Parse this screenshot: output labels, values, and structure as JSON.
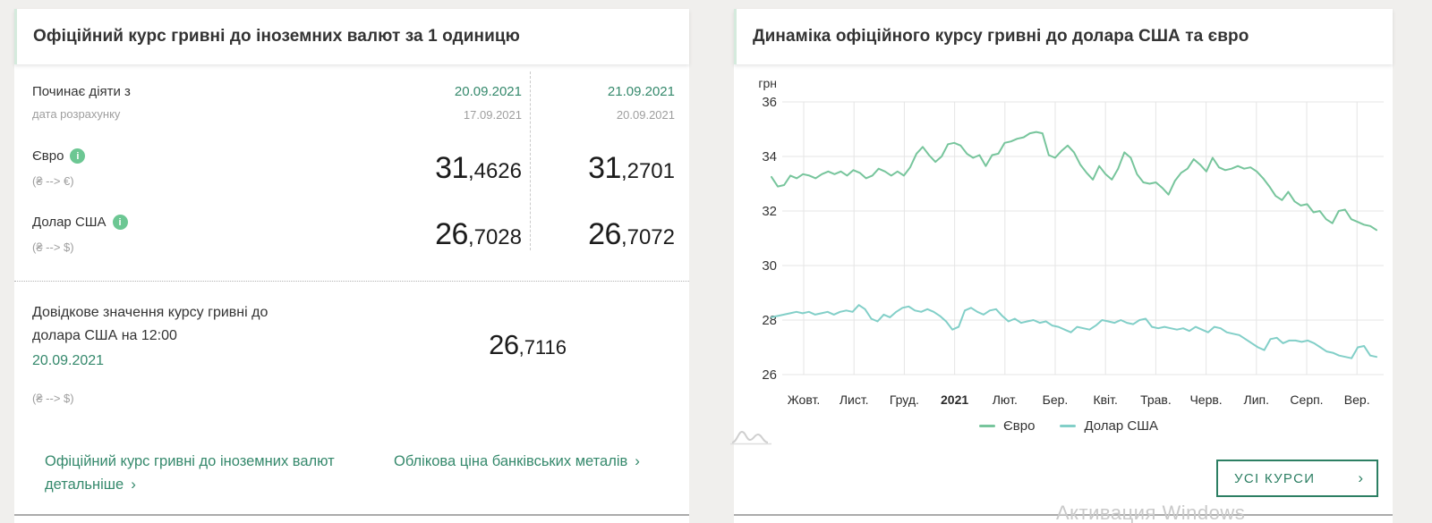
{
  "left_panel": {
    "title": "Офіційний курс гривні до іноземних валют за 1 одиницю",
    "effective_label": "Починає діяти з",
    "calc_label": "дата розрахунку",
    "date_columns": [
      {
        "effective": "20.09.2021",
        "calc": "17.09.2021"
      },
      {
        "effective": "21.09.2021",
        "calc": "20.09.2021"
      }
    ],
    "currencies": [
      {
        "name": "Євро",
        "pair": "(₴ --> €)",
        "rates": [
          "31,4626",
          "31,2701"
        ]
      },
      {
        "name": "Долар США",
        "pair": "(₴ --> $)",
        "rates": [
          "26,7028",
          "26,7072"
        ]
      }
    ],
    "reference": {
      "text_line1": "Довідкове значення курсу гривні до",
      "text_line2": "долара США на 12:00",
      "date": "20.09.2021",
      "pair": "(₴ --> $)",
      "value": "26,7116"
    },
    "links": [
      {
        "label": "Офіційний курс гривні до іноземних валют детальніше",
        "chevron": "›"
      },
      {
        "label": "Облікова ціна банківських металів",
        "chevron": "›"
      }
    ]
  },
  "right_panel": {
    "title": "Динаміка офіційного курсу гривні до долара США та євро",
    "all_rates_button": "УСІ КУРСИ",
    "button_chevron": "›"
  },
  "watermark": "Активация Windows",
  "colors": {
    "accent_green": "#35896c",
    "button_green": "#2c7f63",
    "euro_line": "#77c59c",
    "dollar_line": "#82cfc8",
    "info_icon": "#6cc793",
    "grid": "#e5e5e5",
    "axis_text": "#333333",
    "gray_text": "#9e9e9e"
  },
  "chart_data": {
    "type": "line",
    "title": "Динаміка офіційного курсу гривні до долара США та євро",
    "ylabel": "грн",
    "ylim": [
      26,
      36
    ],
    "yticks": [
      36,
      34,
      32,
      30,
      28,
      26
    ],
    "x_tick_labels": [
      "Жовт.",
      "Лист.",
      "Груд.",
      "2021",
      "Лют.",
      "Бер.",
      "Квіт.",
      "Трав.",
      "Черв.",
      "Лип.",
      "Серп.",
      "Вер."
    ],
    "bold_x_tick": "2021",
    "grid": true,
    "legend_position": "bottom",
    "series": [
      {
        "name": "Євро",
        "color": "#77c59c",
        "values": [
          33.25,
          32.9,
          32.95,
          33.3,
          33.2,
          33.35,
          33.3,
          33.2,
          33.35,
          33.45,
          33.35,
          33.45,
          33.3,
          33.5,
          33.4,
          33.2,
          33.3,
          33.55,
          33.45,
          33.3,
          33.45,
          33.3,
          33.6,
          34.1,
          34.35,
          34.05,
          33.8,
          34.0,
          34.45,
          34.5,
          34.4,
          34.1,
          33.95,
          34.05,
          33.65,
          34.05,
          34.1,
          34.5,
          34.55,
          34.65,
          34.7,
          34.85,
          34.9,
          34.85,
          34.05,
          33.95,
          34.2,
          34.4,
          34.15,
          33.7,
          33.4,
          33.15,
          33.65,
          33.35,
          33.15,
          33.55,
          34.15,
          33.95,
          33.35,
          33.05,
          33.0,
          33.05,
          32.85,
          32.6,
          33.1,
          33.4,
          33.55,
          33.9,
          33.7,
          33.45,
          33.95,
          33.6,
          33.5,
          33.55,
          33.65,
          33.55,
          33.6,
          33.45,
          33.2,
          32.9,
          32.55,
          32.4,
          32.7,
          32.35,
          32.2,
          32.25,
          31.95,
          32.0,
          31.7,
          31.55,
          32.0,
          32.05,
          31.7,
          31.6,
          31.5,
          31.45,
          31.3
        ]
      },
      {
        "name": "Долар США",
        "color": "#82cfc8",
        "values": [
          28.1,
          28.15,
          28.2,
          28.25,
          28.3,
          28.25,
          28.3,
          28.2,
          28.25,
          28.3,
          28.2,
          28.3,
          28.35,
          28.3,
          28.55,
          28.4,
          28.05,
          27.95,
          28.2,
          28.1,
          28.3,
          28.45,
          28.5,
          28.35,
          28.3,
          28.4,
          28.3,
          28.15,
          27.95,
          27.65,
          27.75,
          28.35,
          28.45,
          28.3,
          28.2,
          28.35,
          28.4,
          28.15,
          27.95,
          28.05,
          27.9,
          27.95,
          28.0,
          27.9,
          27.95,
          27.8,
          27.75,
          27.65,
          27.55,
          27.75,
          27.7,
          27.65,
          27.8,
          28.0,
          27.95,
          27.9,
          28.0,
          27.9,
          27.85,
          28.0,
          28.05,
          27.75,
          27.7,
          27.75,
          27.7,
          27.65,
          27.7,
          27.6,
          27.75,
          27.65,
          27.55,
          27.75,
          27.7,
          27.55,
          27.5,
          27.45,
          27.3,
          27.15,
          27.0,
          26.9,
          27.3,
          27.35,
          27.15,
          27.25,
          27.25,
          27.2,
          27.25,
          27.15,
          27.0,
          26.85,
          26.8,
          26.7,
          26.65,
          26.6,
          27.0,
          27.05,
          26.7,
          26.65
        ]
      }
    ]
  }
}
